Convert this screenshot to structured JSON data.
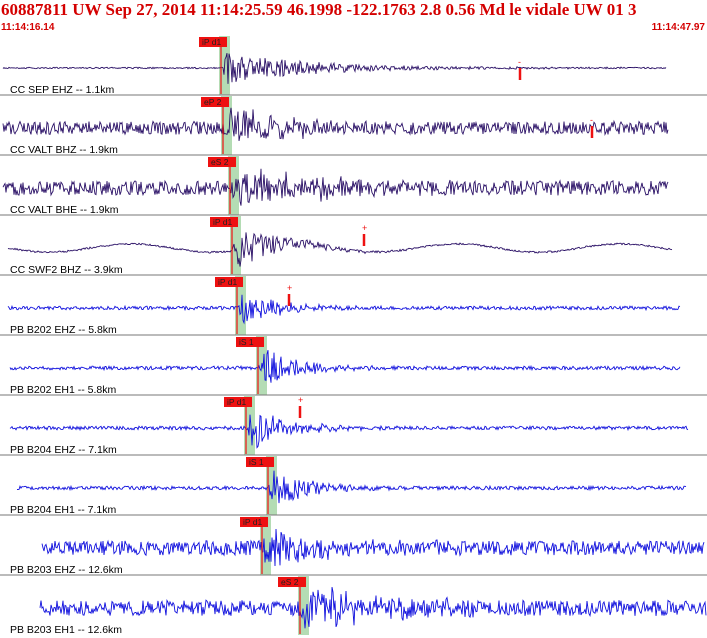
{
  "header": {
    "title": "60887811 UW Sep 27, 2014 11:14:25.59   46.1998 -122.1763  2.8 0.56 Md le vidale UW 01   3",
    "start_time": "11:14:16.14",
    "end_time": "11:14:47.97"
  },
  "colors": {
    "header_text": "#d40000",
    "cc_trace": "#2a1066",
    "pb_trace": "#1010dd",
    "pick_box": "#ee1111",
    "pick_window": "#b4dcb4",
    "separator": "#777777"
  },
  "chart_data": {
    "type": "seismogram",
    "time_range": [
      "11:14:16.14",
      "11:14:47.97"
    ],
    "traces": [
      {
        "label": "CC SEP EHZ -- 1.1km",
        "pick": "iP d1",
        "color": "cc",
        "amp": 0.28,
        "noise": 0.025,
        "onset": 221,
        "start": 3,
        "end": 666,
        "low": 0,
        "decay": 90
      },
      {
        "label": "CC VALT BHZ -- 1.9km",
        "pick": "eP 2",
        "color": "cc",
        "amp": 0.35,
        "noise": 0.22,
        "onset": 223,
        "start": 3,
        "end": 668,
        "low": 0,
        "decay": 60
      },
      {
        "label": "CC VALT BHE -- 1.9km",
        "pick": "eS 2",
        "color": "cc",
        "amp": 0.4,
        "noise": 0.24,
        "onset": 230,
        "start": 3,
        "end": 668,
        "low": 0,
        "decay": 70
      },
      {
        "label": "CC SWF2 BHZ -- 3.9km",
        "pick": "iP d1",
        "color": "cc",
        "amp": 0.4,
        "noise": 0.03,
        "onset": 232,
        "start": 8,
        "end": 672,
        "low": 0.14,
        "decay": 45
      },
      {
        "label": "PB B202 EHZ -- 5.8km",
        "pick": "iP d1",
        "color": "pb",
        "amp": 0.34,
        "noise": 0.06,
        "onset": 237,
        "start": 8,
        "end": 680,
        "low": 0,
        "decay": 35
      },
      {
        "label": "PB B202 EH1 -- 5.8km",
        "pick": "iS 1",
        "color": "pb",
        "amp": 0.4,
        "noise": 0.06,
        "onset": 258,
        "start": 10,
        "end": 680,
        "low": 0,
        "decay": 35
      },
      {
        "label": "PB B204 EHZ -- 7.1km",
        "pick": "iP d1",
        "color": "pb",
        "amp": 0.42,
        "noise": 0.06,
        "onset": 246,
        "start": 10,
        "end": 688,
        "low": 0,
        "decay": 35
      },
      {
        "label": "PB B204 EH1 -- 7.1km",
        "pick": "iS 1",
        "color": "pb",
        "amp": 0.4,
        "noise": 0.06,
        "onset": 268,
        "start": 17,
        "end": 686,
        "low": 0,
        "decay": 35
      },
      {
        "label": "PB B203 EHZ -- 12.6km",
        "pick": "iP d1",
        "color": "pb",
        "amp": 0.36,
        "noise": 0.24,
        "onset": 262,
        "start": 42,
        "end": 704,
        "low": 0,
        "decay": 60
      },
      {
        "label": "PB B203 EH1 -- 12.6km",
        "pick": "eS 2",
        "color": "pb",
        "amp": 0.4,
        "noise": 0.26,
        "onset": 300,
        "start": 40,
        "end": 706,
        "low": 0,
        "decay": 70
      }
    ],
    "coda_markers": [
      "-",
      "-",
      "+",
      "+",
      "+"
    ]
  }
}
